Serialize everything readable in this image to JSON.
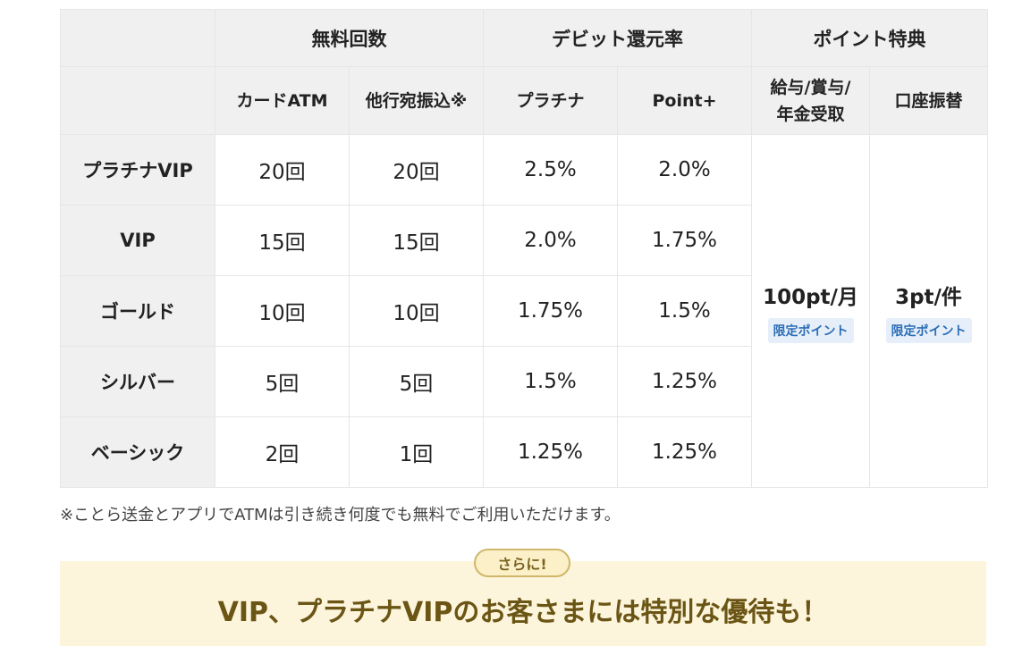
{
  "table": {
    "groups": {
      "free": "無料回数",
      "debit": "デビット還元率",
      "points": "ポイント特典"
    },
    "subheaders": {
      "card_atm": "カードATM",
      "transfer": "他行宛振込※",
      "platinum": "プラチナ",
      "point_plus": "Point+",
      "salary_line1": "給与/賞与/",
      "salary_line2": "年金受取",
      "account_transfer": "口座振替"
    },
    "rows": [
      {
        "rank": "プラチナVIP",
        "atm": "20回",
        "transfer": "20回",
        "platinum": "2.5%",
        "point_plus": "2.0%"
      },
      {
        "rank": "VIP",
        "atm": "15回",
        "transfer": "15回",
        "platinum": "2.0%",
        "point_plus": "1.75%"
      },
      {
        "rank": "ゴールド",
        "atm": "10回",
        "transfer": "10回",
        "platinum": "1.75%",
        "point_plus": "1.5%"
      },
      {
        "rank": "シルバー",
        "atm": "5回",
        "transfer": "5回",
        "platinum": "1.5%",
        "point_plus": "1.25%"
      },
      {
        "rank": "ベーシック",
        "atm": "2回",
        "transfer": "1回",
        "platinum": "1.25%",
        "point_plus": "1.25%"
      }
    ],
    "salary_value": "100pt/月",
    "salary_tag": "限定ポイント",
    "account_value": "3pt/件",
    "account_tag": "限定ポイント"
  },
  "note": "※ことら送金とアプリでATMは引き続き何度でも無料でご利用いただけます。",
  "promo": {
    "badge": "さらに!",
    "text": "VIP、プラチナVIPのお客さまには特別な優待も！"
  }
}
